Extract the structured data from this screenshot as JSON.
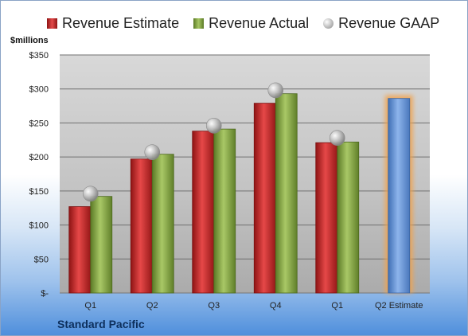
{
  "company": "Standard Pacific",
  "chart_data": {
    "type": "bar",
    "units_label": "$millions",
    "categories": [
      "Q1",
      "Q2",
      "Q3",
      "Q4",
      "Q1",
      "Q2 Estimate"
    ],
    "y_tick_labels": [
      "$-",
      "$50",
      "$100",
      "$150",
      "$200",
      "$250",
      "$300",
      "$350"
    ],
    "ylim": [
      0,
      350
    ],
    "grid": true,
    "legend_position": "top",
    "series": [
      {
        "name": "Revenue Estimate",
        "type": "bar",
        "color": "#d42a2a",
        "values": [
          127,
          197,
          238,
          279,
          221,
          286
        ]
      },
      {
        "name": "Revenue Actual",
        "type": "bar",
        "color": "#8fb04a",
        "values": [
          142,
          204,
          241,
          293,
          222,
          null
        ]
      },
      {
        "name": "Revenue GAAP",
        "type": "marker",
        "color": "#b9b9b9",
        "values": [
          146,
          207,
          246,
          298,
          228,
          null
        ]
      }
    ],
    "highlight": {
      "category_index": 5,
      "color": "#6a9be0",
      "glow": "#f2a14a"
    }
  }
}
